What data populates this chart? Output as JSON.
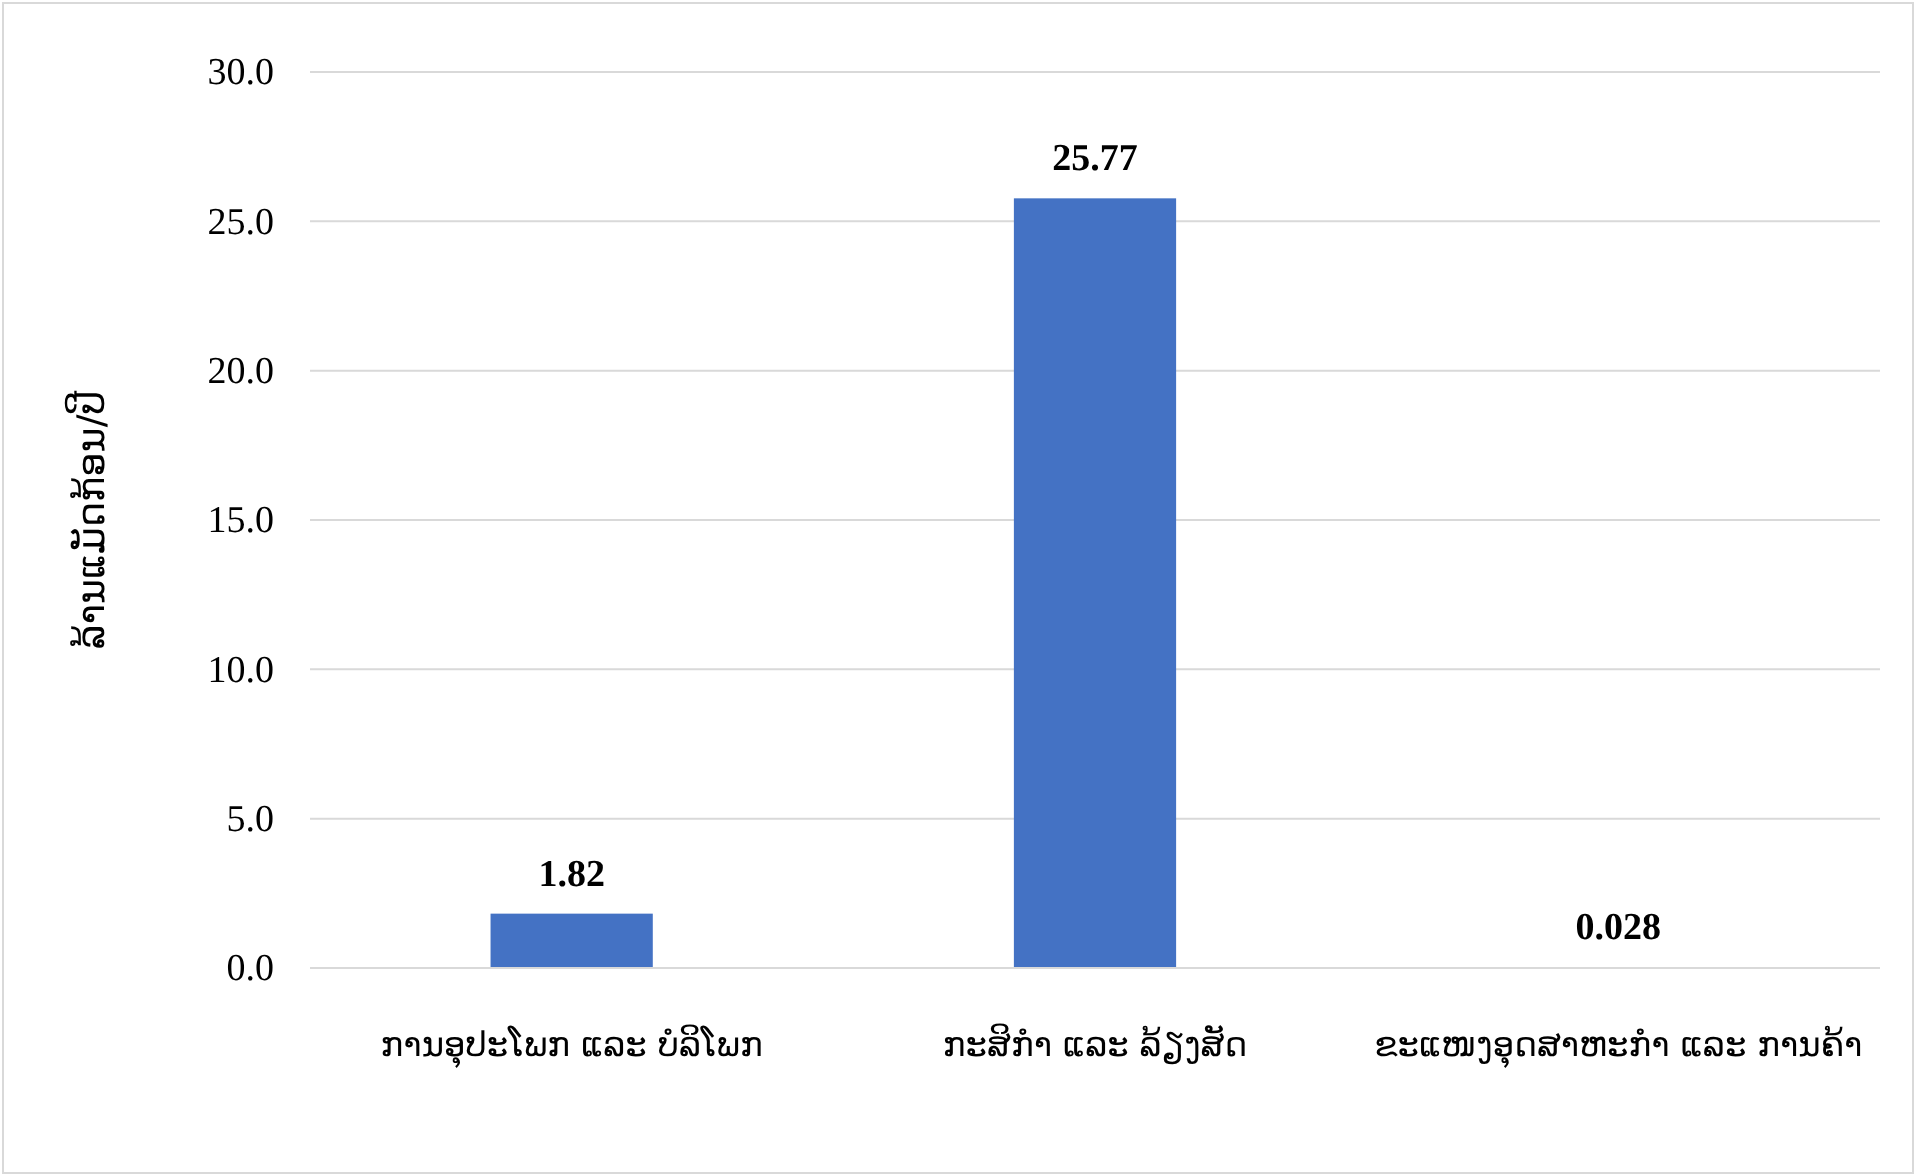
{
  "chart_data": {
    "type": "bar",
    "ylabel": "ລ້ານແມັດກ້ອນ/ປີ",
    "categories": [
      "ການອຸປະໂພກ ແລະ ບໍລິໂພກ",
      "ກະສິກຳ ແລະ ລ້ຽງສັດ",
      "ຂະແໜງອຸດສາຫະກຳ ແລະ ການຄ້າ"
    ],
    "values": [
      1.82,
      25.77,
      0.028
    ],
    "color": "#4472c4",
    "ylim": [
      0,
      30
    ],
    "yticks": [
      {
        "value": 0,
        "label": "0.0"
      },
      {
        "value": 5,
        "label": "5.0"
      },
      {
        "value": 10,
        "label": "10.0"
      },
      {
        "value": 15,
        "label": "15.0"
      },
      {
        "value": 20,
        "label": "20.0"
      },
      {
        "value": 25,
        "label": "25.0"
      },
      {
        "value": 30,
        "label": "30.0"
      }
    ],
    "grid": "y",
    "data_labels": true
  }
}
